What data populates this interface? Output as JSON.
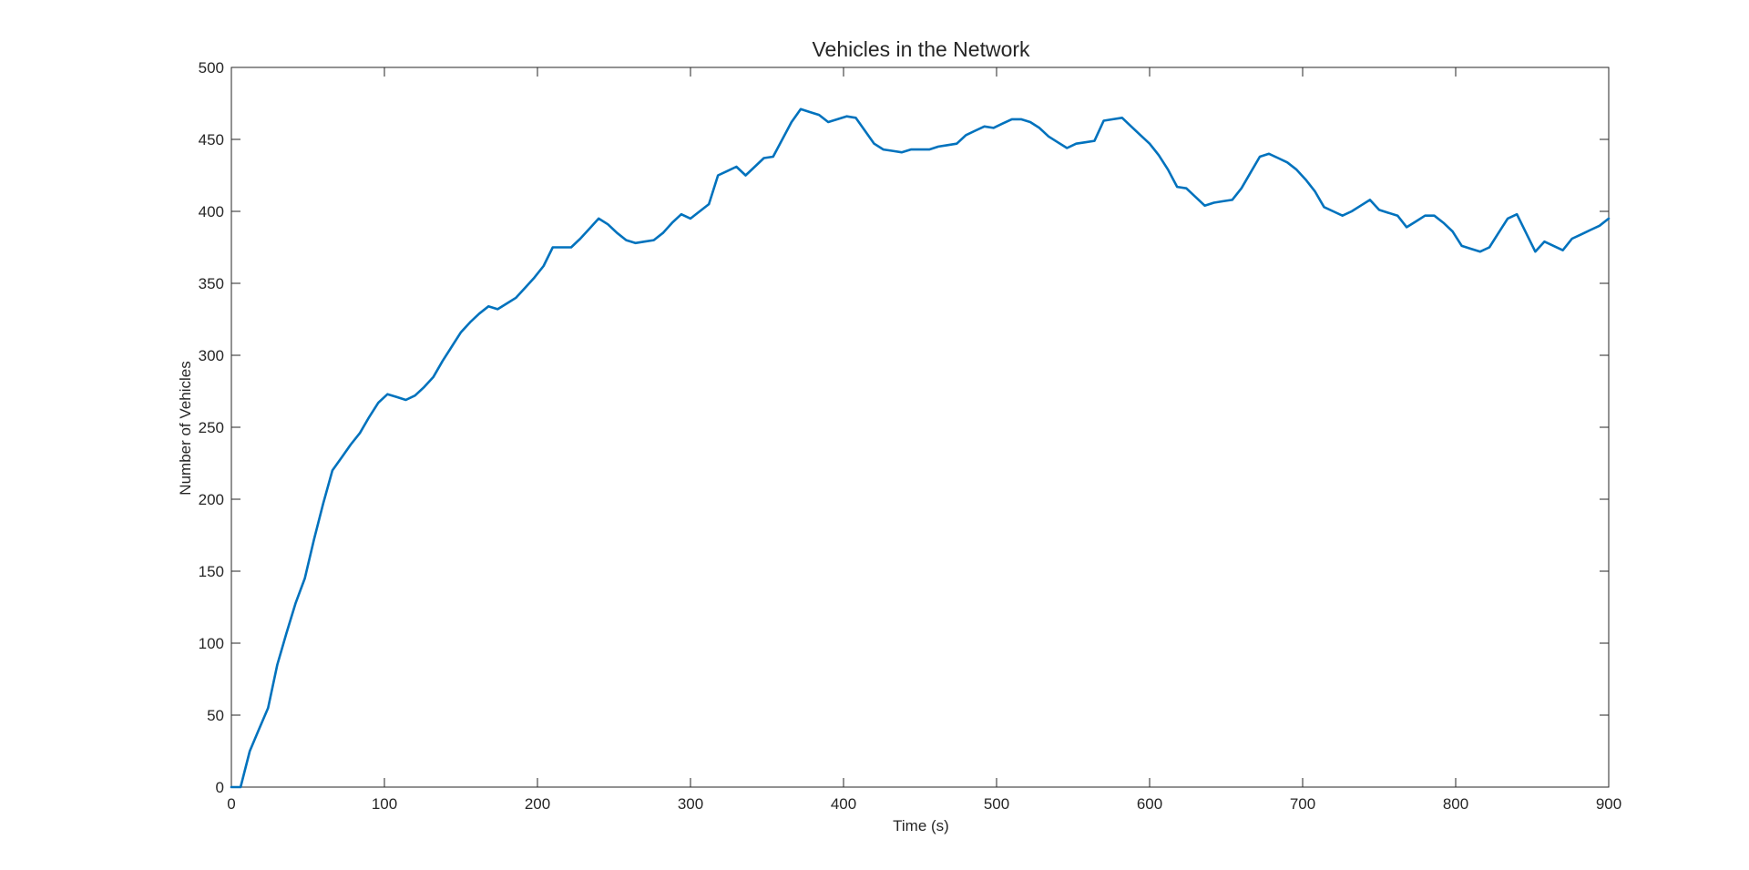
{
  "chart_data": {
    "type": "line",
    "title": "Vehicles in the Network",
    "xlabel": "Time (s)",
    "ylabel": "Number of Vehicles",
    "xlim": [
      0,
      900
    ],
    "ylim": [
      0,
      500
    ],
    "xticks": [
      0,
      100,
      200,
      300,
      400,
      500,
      600,
      700,
      800,
      900
    ],
    "yticks": [
      0,
      50,
      100,
      150,
      200,
      250,
      300,
      350,
      400,
      450,
      500
    ],
    "grid": false,
    "legend": "none",
    "line_color": "#0072BD",
    "series": [
      {
        "x": [
          0,
          6,
          12,
          18,
          24,
          30,
          36,
          42,
          48,
          54,
          60,
          66,
          72,
          78,
          84,
          90,
          96,
          102,
          108,
          114,
          120,
          126,
          132,
          138,
          144,
          150,
          156,
          162,
          168,
          174,
          180,
          186,
          192,
          198,
          204,
          210,
          216,
          222,
          228,
          234,
          240,
          246,
          252,
          258,
          264,
          270,
          276,
          282,
          288,
          294,
          300,
          306,
          312,
          318,
          324,
          330,
          336,
          342,
          348,
          354,
          360,
          366,
          372,
          378,
          384,
          390,
          396,
          402,
          408,
          414,
          420,
          426,
          432,
          438,
          444,
          450,
          456,
          462,
          468,
          474,
          480,
          486,
          492,
          498,
          504,
          510,
          516,
          522,
          528,
          534,
          540,
          546,
          552,
          558,
          564,
          570,
          576,
          582,
          588,
          594,
          600,
          606,
          612,
          618,
          624,
          630,
          636,
          642,
          648,
          654,
          660,
          666,
          672,
          678,
          684,
          690,
          696,
          702,
          708,
          714,
          720,
          726,
          732,
          738,
          744,
          750,
          756,
          762,
          768,
          774,
          780,
          786,
          792,
          798,
          804,
          810,
          816,
          822,
          828,
          834,
          840,
          846,
          852,
          858,
          864,
          870,
          876,
          882,
          888,
          894,
          900
        ],
        "y": [
          0,
          0,
          25,
          40,
          55,
          85,
          107,
          128,
          145,
          172,
          197,
          220,
          229,
          238,
          246,
          257,
          267,
          273,
          271,
          269,
          272,
          278,
          285,
          296,
          306,
          316,
          323,
          329,
          334,
          332,
          336,
          340,
          347,
          354,
          362,
          375,
          375,
          375,
          381,
          388,
          395,
          391,
          385,
          380,
          378,
          379,
          380,
          385,
          392,
          398,
          395,
          400,
          405,
          425,
          428,
          431,
          425,
          431,
          437,
          438,
          450,
          462,
          471,
          469,
          467,
          462,
          464,
          466,
          465,
          456,
          447,
          443,
          442,
          441,
          443,
          443,
          443,
          445,
          446,
          447,
          453,
          456,
          459,
          458,
          461,
          464,
          464,
          462,
          458,
          452,
          448,
          444,
          447,
          448,
          449,
          463,
          464,
          465,
          459,
          453,
          447,
          439,
          429,
          417,
          416,
          410,
          404,
          406,
          407,
          408,
          416,
          427,
          438,
          440,
          437,
          434,
          429,
          422,
          414,
          403,
          400,
          397,
          400,
          404,
          408,
          401,
          399,
          397,
          389,
          393,
          397,
          397,
          392,
          386,
          376,
          374,
          372,
          375,
          385,
          395,
          398,
          385,
          372,
          379,
          376,
          373,
          381,
          384,
          387,
          390,
          395
        ]
      }
    ]
  }
}
